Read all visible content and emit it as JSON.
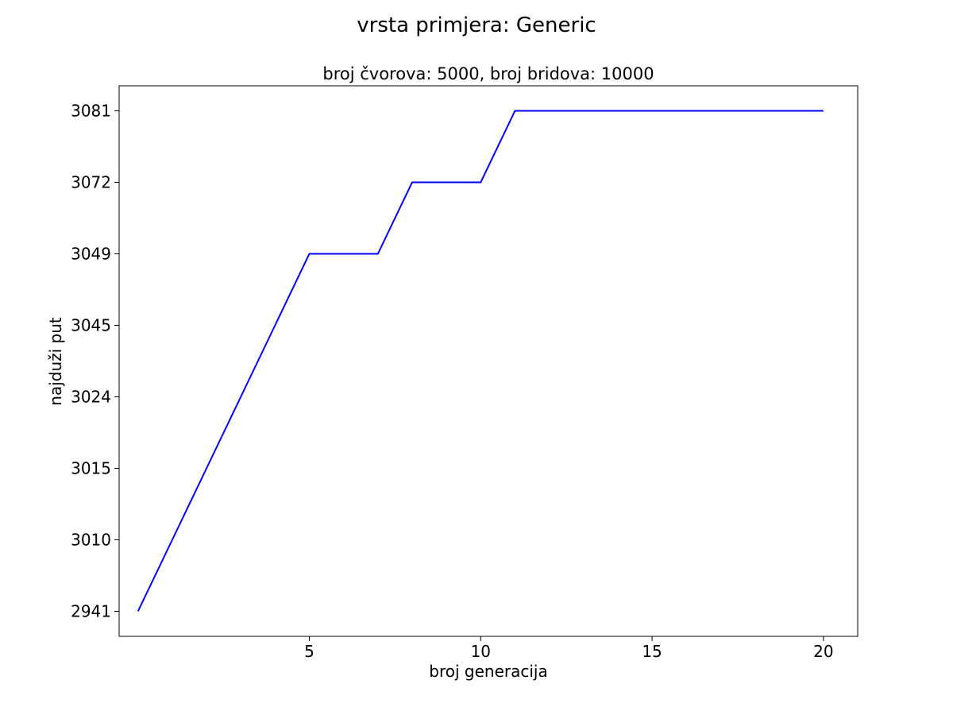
{
  "chart_data": {
    "type": "line",
    "suptitle": "vrsta primjera: Generic",
    "title": "broj čvorova: 5000, broj bridova: 10000",
    "xlabel": "broj generacija",
    "ylabel": "najduži put",
    "x_ticks": [
      5,
      10,
      15,
      20
    ],
    "xlim": [
      -0.55,
      21.0
    ],
    "y_tick_labels": [
      "2941",
      "3010",
      "3015",
      "3024",
      "3045",
      "3049",
      "3072",
      "3081"
    ],
    "y_axis": "categorical",
    "grid": false,
    "legend": "none",
    "series": [
      {
        "color": "#0000ff",
        "x": [
          0,
          1,
          2,
          3,
          4,
          5,
          6,
          7,
          8,
          9,
          10,
          11,
          12,
          13,
          14,
          15,
          16,
          17,
          18,
          19,
          20
        ],
        "y": [
          "2941",
          "3010",
          "3015",
          "3024",
          "3045",
          "3049",
          "3049",
          "3049",
          "3072",
          "3072",
          "3072",
          "3081",
          "3081",
          "3081",
          "3081",
          "3081",
          "3081",
          "3081",
          "3081",
          "3081",
          "3081"
        ]
      }
    ]
  }
}
